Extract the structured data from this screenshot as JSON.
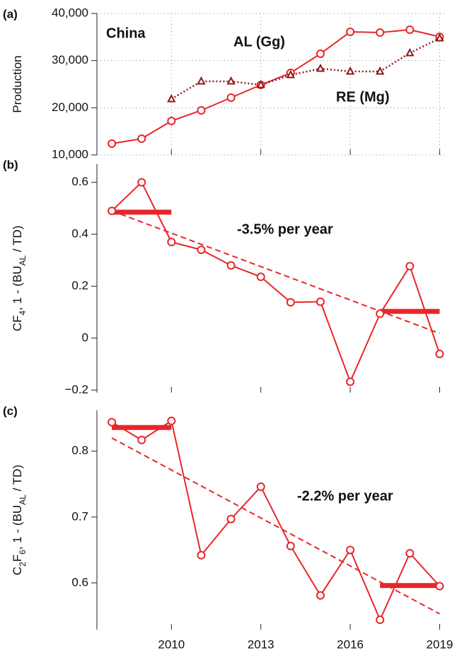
{
  "chart_data": [
    {
      "type": "line",
      "panel_label": "(a)",
      "ylabel": [
        {
          "text": "Production"
        }
      ],
      "x": [
        2008,
        2009,
        2010,
        2011,
        2012,
        2013,
        2014,
        2015,
        2016,
        2017,
        2018,
        2019
      ],
      "series": [
        {
          "name": "AL (Gg)",
          "color": "#e8262a",
          "marker": "circle",
          "linestyle": "solid",
          "values": [
            12400,
            13450,
            17200,
            19450,
            22150,
            24850,
            27400,
            31450,
            36100,
            35950,
            36550,
            35050
          ]
        },
        {
          "name": "RE (Mg)",
          "color": "#8b1a1a",
          "marker": "triangle",
          "linestyle": "dotted",
          "values": [
            null,
            null,
            21850,
            25600,
            25600,
            24850,
            26950,
            28300,
            27700,
            27700,
            31600,
            34750
          ]
        }
      ],
      "annotations": [
        {
          "text": "China",
          "color": "#e8262a"
        }
      ],
      "xlim": [
        2007.5,
        2019.25
      ],
      "xticks": [
        2010,
        2013,
        2016,
        2019
      ],
      "ylim": [
        10000,
        40000
      ],
      "yticks": [
        {
          "value": 10000,
          "label": "10,000"
        },
        {
          "value": 20000,
          "label": "20,000"
        },
        {
          "value": 30000,
          "label": "30,000"
        },
        {
          "value": 40000,
          "label": "40,000"
        }
      ],
      "grid": true
    },
    {
      "type": "line",
      "panel_label": "(b)",
      "ylabel": [
        {
          "text": "CF"
        },
        {
          "text": "4",
          "sub": true
        },
        {
          "text": ", 1 - (BU"
        },
        {
          "text": "AL",
          "sub": true
        },
        {
          "text": " / TD)"
        }
      ],
      "x": [
        2008,
        2009,
        2010,
        2011,
        2012,
        2013,
        2014,
        2015,
        2016,
        2017,
        2018,
        2019
      ],
      "series": [
        {
          "color": "#e8262a",
          "marker": "circle",
          "linestyle": "solid",
          "values": [
            0.49,
            0.6,
            0.37,
            0.34,
            0.28,
            0.236,
            0.138,
            0.14,
            -0.168,
            0.094,
            0.277,
            -0.061
          ]
        }
      ],
      "trend": {
        "x": [
          2008,
          2019
        ],
        "values": [
          0.49,
          0.018
        ],
        "color": "#e8262a"
      },
      "means": [
        {
          "x": [
            2008,
            2010
          ],
          "value": 0.485,
          "color": "#e8262a"
        },
        {
          "x": [
            2017,
            2019
          ],
          "value": 0.103,
          "color": "#e8262a"
        }
      ],
      "annotations": [
        {
          "text": "-3.5% per year",
          "color": "#e8262a"
        }
      ],
      "xlim": [
        2007.5,
        2019.25
      ],
      "xticks": [
        2010,
        2013,
        2016,
        2019
      ],
      "ylim": [
        -0.21,
        0.67
      ],
      "yticks": [
        {
          "value": -0.2,
          "label": "−0.2"
        },
        0,
        0.2,
        0.4,
        0.6
      ],
      "grid": false
    },
    {
      "type": "line",
      "panel_label": "(c)",
      "ylabel": [
        {
          "text": "C"
        },
        {
          "text": "2",
          "sub": true
        },
        {
          "text": "F"
        },
        {
          "text": "6",
          "sub": true
        },
        {
          "text": ", 1 - (BU"
        },
        {
          "text": "AL",
          "sub": true
        },
        {
          "text": " / TD)"
        }
      ],
      "x": [
        2008,
        2009,
        2010,
        2011,
        2012,
        2013,
        2014,
        2015,
        2016,
        2017,
        2018,
        2019
      ],
      "series": [
        {
          "color": "#e8262a",
          "marker": "circle",
          "linestyle": "solid",
          "values": [
            0.844,
            0.817,
            0.846,
            0.642,
            0.697,
            0.746,
            0.656,
            0.581,
            0.65,
            0.544,
            0.645,
            0.595
          ]
        }
      ],
      "trend": {
        "x": [
          2008,
          2019
        ],
        "values": [
          0.82,
          0.553
        ],
        "color": "#e8262a"
      },
      "means": [
        {
          "x": [
            2008,
            2010
          ],
          "value": 0.836,
          "color": "#e8262a"
        },
        {
          "x": [
            2017,
            2019
          ],
          "value": 0.596,
          "color": "#e8262a"
        }
      ],
      "annotations": [
        {
          "text": "-2.2% per year",
          "color": "#e8262a"
        }
      ],
      "xlim": [
        2007.5,
        2019.25
      ],
      "xticks": [
        2010,
        2013,
        2016,
        2019
      ],
      "ylim": [
        0.529,
        0.862
      ],
      "yticks": [
        0.6,
        0.7,
        0.8
      ],
      "grid": false
    }
  ]
}
